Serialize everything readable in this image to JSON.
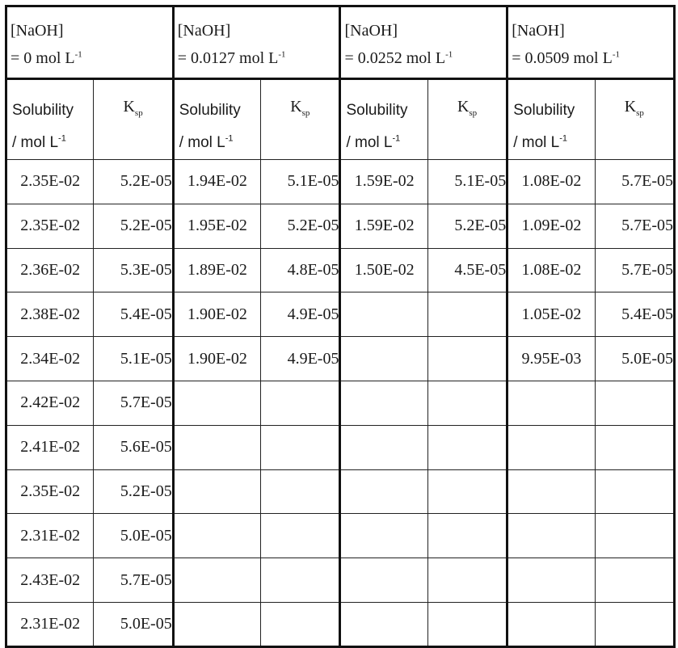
{
  "groups": [
    {
      "head1": "[NaOH]",
      "head2": "= 0 mol L",
      "head2_exp": "-1"
    },
    {
      "head1": "[NaOH]",
      "head2": "= 0.0127 mol L",
      "head2_exp": "-1"
    },
    {
      "head1": "[NaOH]",
      "head2": "= 0.0252 mol L",
      "head2_exp": "-1"
    },
    {
      "head1": "[NaOH]",
      "head2": "= 0.0509 mol L",
      "head2_exp": "-1"
    }
  ],
  "subheader": {
    "sol_line1": "Solubility",
    "sol_line2": "/ mol L",
    "sol_exp": "-1",
    "k_main": "K",
    "k_sub": "sp"
  },
  "rows": [
    [
      "2.35E-02",
      "5.2E-05",
      "1.94E-02",
      "5.1E-05",
      "1.59E-02",
      "5.1E-05",
      "1.08E-02",
      "5.7E-05"
    ],
    [
      "2.35E-02",
      "5.2E-05",
      "1.95E-02",
      "5.2E-05",
      "1.59E-02",
      "5.2E-05",
      "1.09E-02",
      "5.7E-05"
    ],
    [
      "2.36E-02",
      "5.3E-05",
      "1.89E-02",
      "4.8E-05",
      "1.50E-02",
      "4.5E-05",
      "1.08E-02",
      "5.7E-05"
    ],
    [
      "2.38E-02",
      "5.4E-05",
      "1.90E-02",
      "4.9E-05",
      "",
      "",
      "1.05E-02",
      "5.4E-05"
    ],
    [
      "2.34E-02",
      "5.1E-05",
      "1.90E-02",
      "4.9E-05",
      "",
      "",
      "9.95E-03",
      "5.0E-05"
    ],
    [
      "2.42E-02",
      "5.7E-05",
      "",
      "",
      "",
      "",
      "",
      ""
    ],
    [
      "2.41E-02",
      "5.6E-05",
      "",
      "",
      "",
      "",
      "",
      ""
    ],
    [
      "2.35E-02",
      "5.2E-05",
      "",
      "",
      "",
      "",
      "",
      ""
    ],
    [
      "2.31E-02",
      "5.0E-05",
      "",
      "",
      "",
      "",
      "",
      ""
    ],
    [
      "2.43E-02",
      "5.7E-05",
      "",
      "",
      "",
      "",
      "",
      ""
    ],
    [
      "2.31E-02",
      "5.0E-05",
      "",
      "",
      "",
      "",
      "",
      ""
    ]
  ]
}
